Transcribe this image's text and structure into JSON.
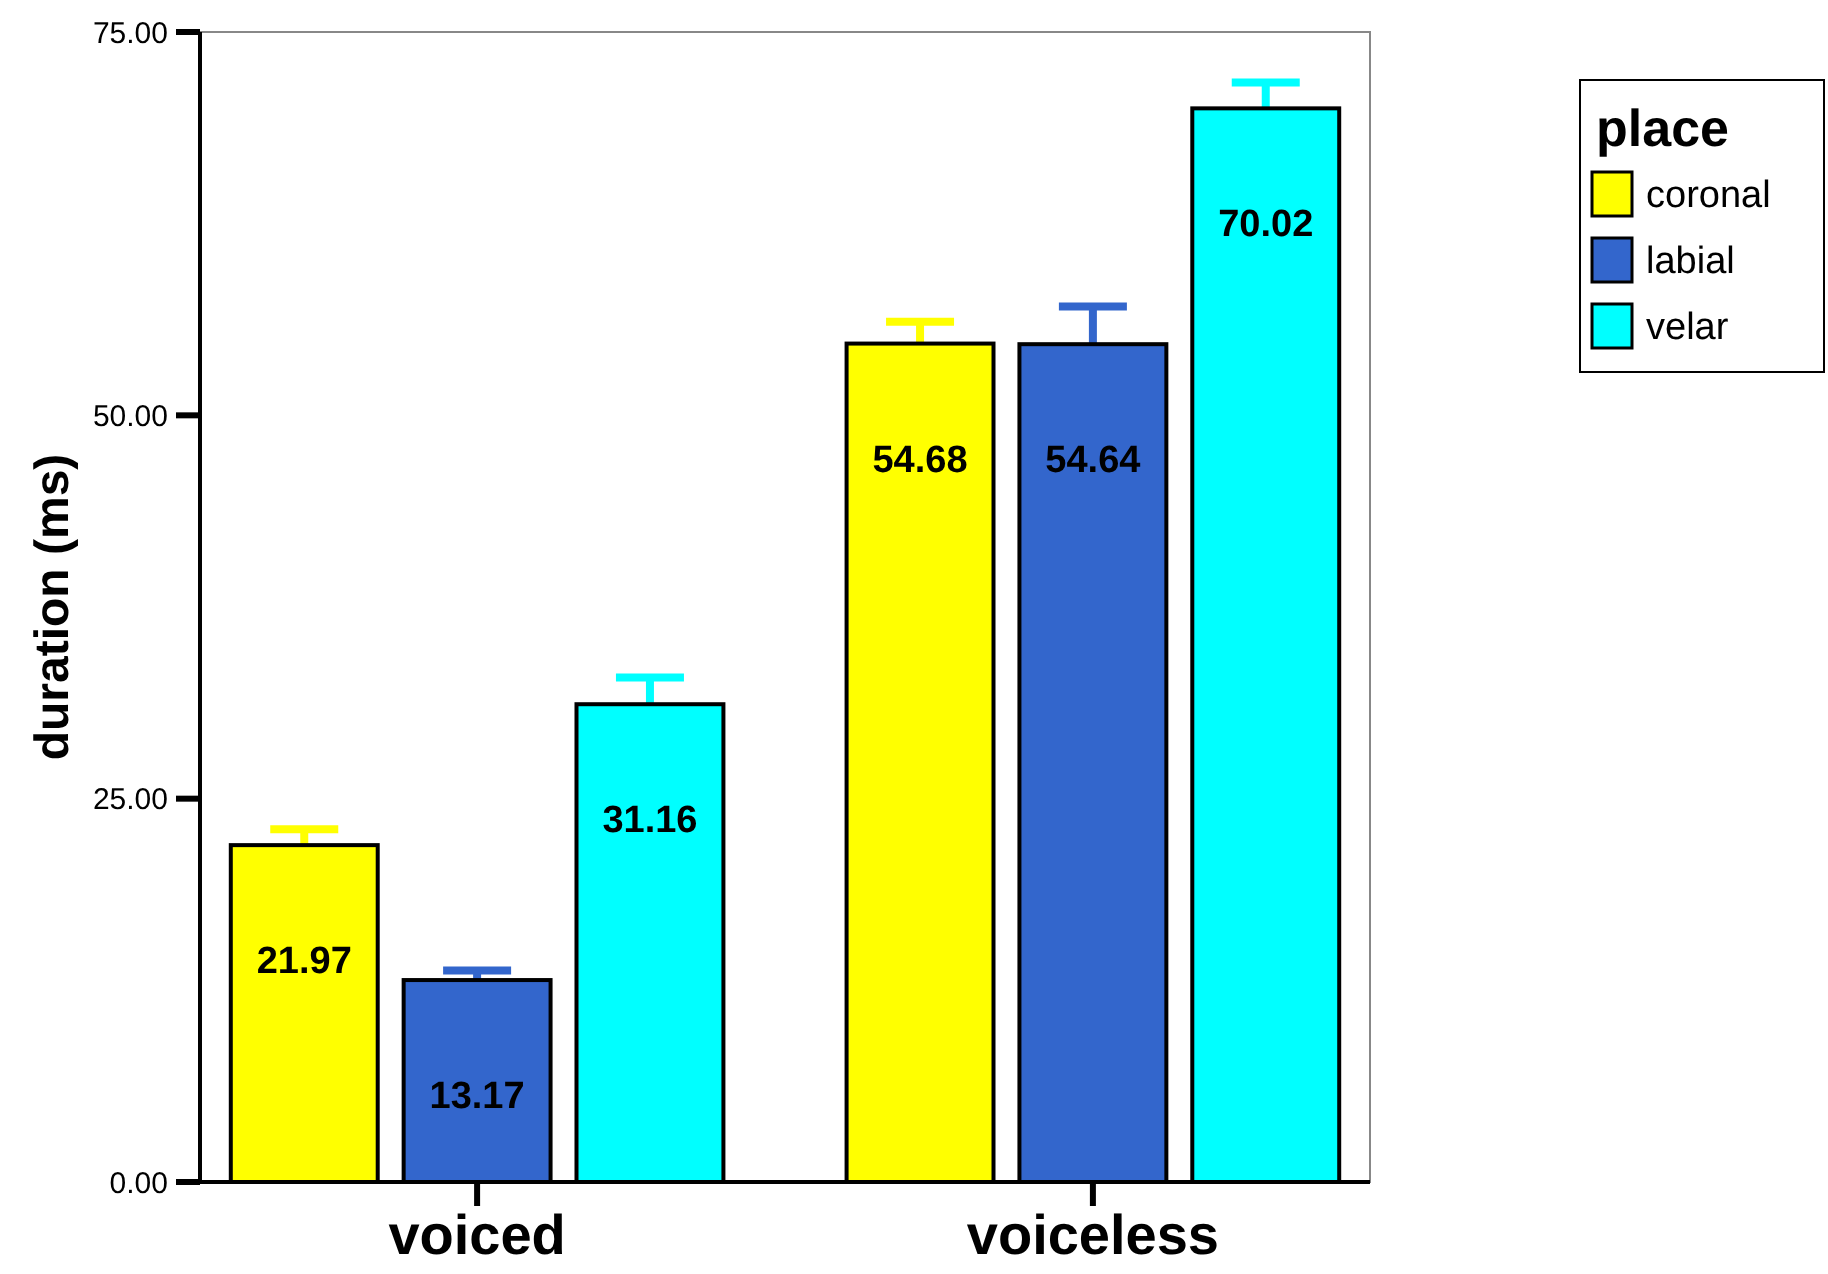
{
  "chart_data": {
    "type": "bar",
    "categories": [
      "voiced",
      "voiceless"
    ],
    "ylabel": "duration (ms)",
    "legend_title": "place",
    "legend": "top right",
    "data_labels": true,
    "ylim": [
      0,
      75
    ],
    "yticks": [
      {
        "value": 0,
        "label": "0.00"
      },
      {
        "value": 25,
        "label": "25.00"
      },
      {
        "value": 50,
        "label": "50.00"
      },
      {
        "value": 75,
        "label": "75.00"
      }
    ],
    "grid": false,
    "series": [
      {
        "name": "coronal",
        "color": "#ffff00",
        "values": [
          21.97,
          54.68
        ],
        "errors": [
          [
            21.97,
            23.0
          ],
          [
            54.68,
            56.1
          ]
        ]
      },
      {
        "name": "labial",
        "color": "#3366cc",
        "values": [
          13.17,
          54.64
        ],
        "errors": [
          [
            13.17,
            13.8
          ],
          [
            54.64,
            57.1
          ]
        ]
      },
      {
        "name": "velar",
        "color": "#00ffff",
        "values": [
          31.16,
          70.02
        ],
        "errors": [
          [
            31.16,
            32.9
          ],
          [
            70.02,
            71.7
          ]
        ]
      }
    ]
  }
}
